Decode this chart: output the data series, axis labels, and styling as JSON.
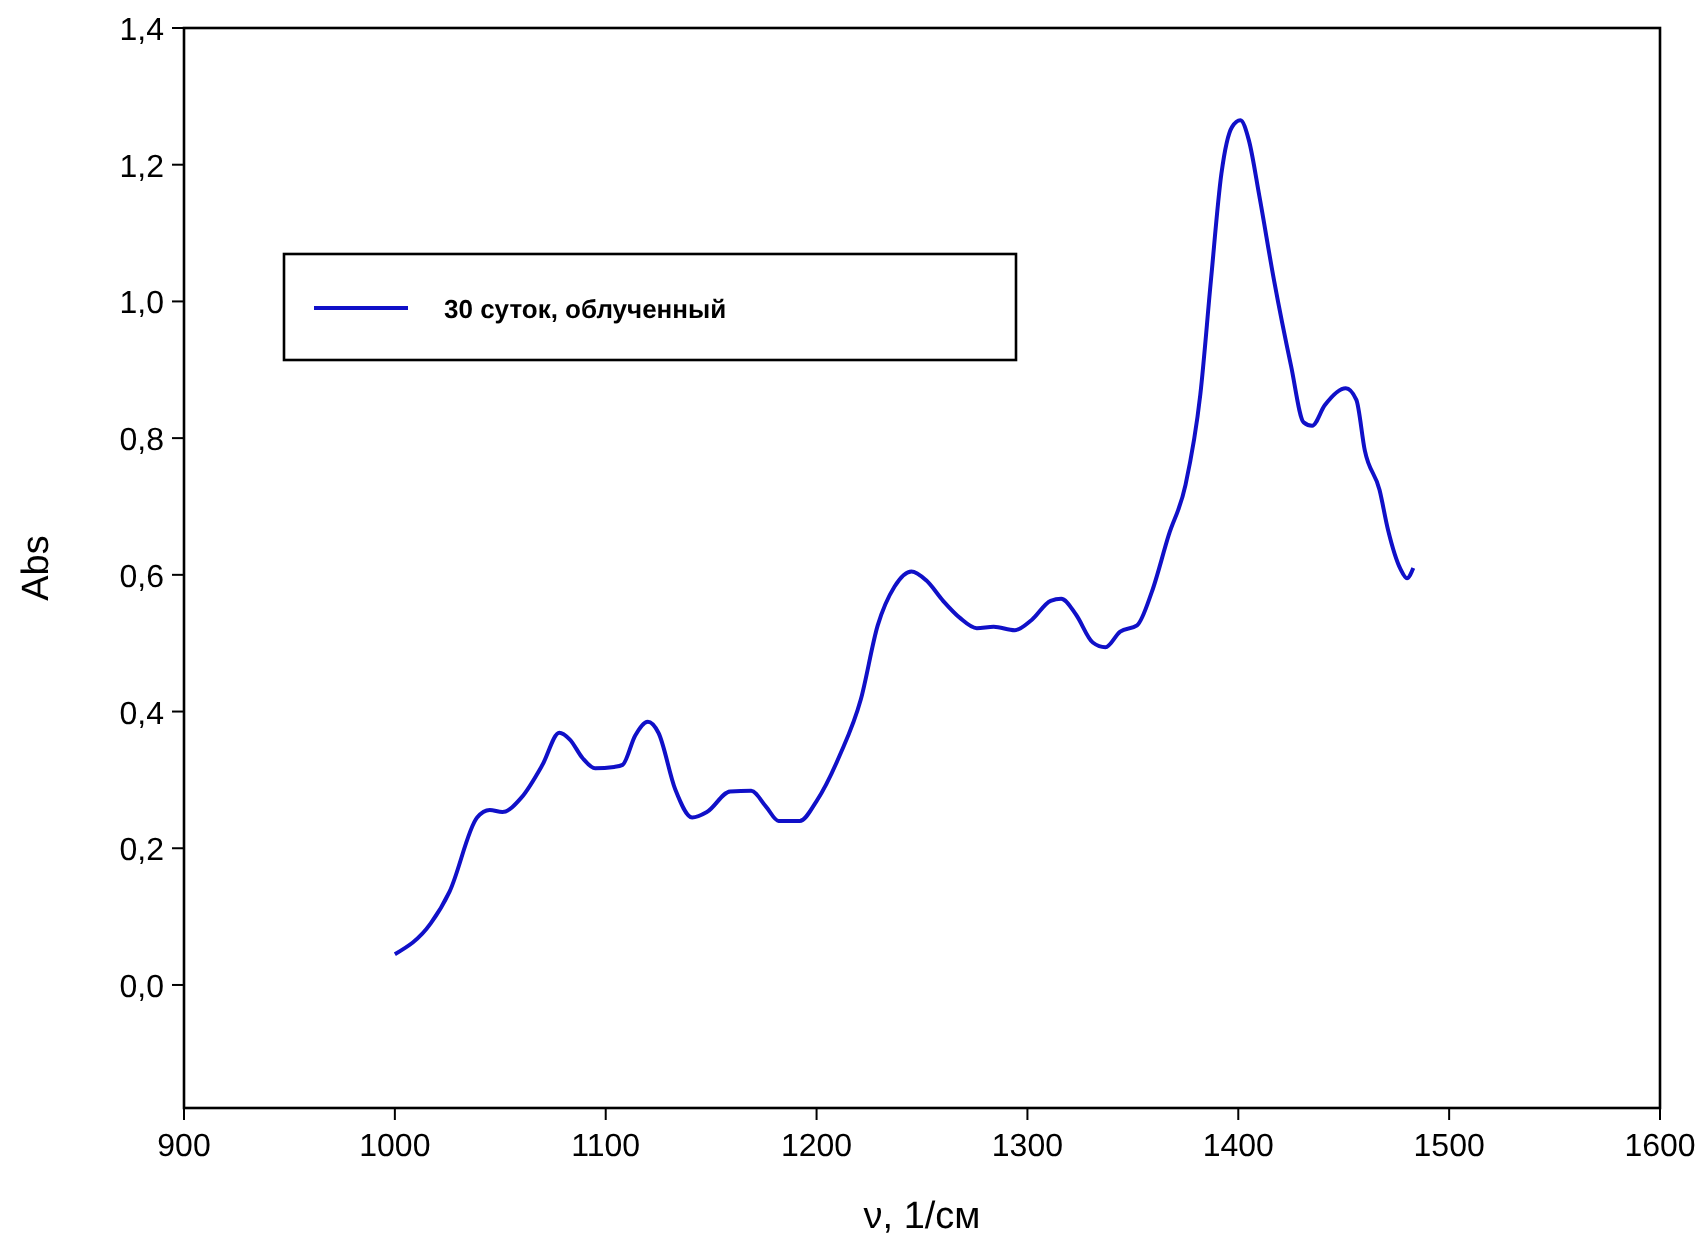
{
  "chart_data": {
    "type": "line",
    "xlabel": "ν, 1/см",
    "ylabel": "Abs",
    "xlim": [
      900,
      1600
    ],
    "xticks": [
      900,
      1000,
      1100,
      1200,
      1300,
      1400,
      1500,
      1600
    ],
    "ylim": [
      -0.18,
      1.4
    ],
    "yticks": [
      {
        "value": 0,
        "label": "0,0"
      },
      {
        "value": 0.2,
        "label": "0,2"
      },
      {
        "value": 0.4,
        "label": "0,4"
      },
      {
        "value": 0.6,
        "label": "0,6"
      },
      {
        "value": 0.8,
        "label": "0,8"
      },
      {
        "value": 1.0,
        "label": "1,0"
      },
      {
        "value": 1.2,
        "label": "1,2"
      },
      {
        "value": 1.4,
        "label": "1,4"
      }
    ],
    "legend": "top left",
    "grid": false,
    "marker": "none",
    "line_style": "solid",
    "series": [
      {
        "name": "30 суток, облученный",
        "color": "#1010c8",
        "x": [
          1000,
          1017,
          1026,
          1039,
          1045,
          1051,
          1060,
          1070,
          1078,
          1083,
          1089,
          1095,
          1104,
          1108,
          1114,
          1120,
          1125,
          1133,
          1141,
          1148,
          1159,
          1169,
          1176,
          1182,
          1192,
          1200,
          1211,
          1221,
          1229,
          1237,
          1245,
          1252,
          1260,
          1268,
          1276,
          1284,
          1294,
          1302,
          1311,
          1316,
          1323,
          1331,
          1337,
          1344,
          1352,
          1359,
          1367,
          1375,
          1382,
          1387,
          1392,
          1397,
          1401,
          1405,
          1410,
          1417,
          1425,
          1431,
          1435,
          1441,
          1451,
          1456,
          1460,
          1467,
          1471,
          1477,
          1480,
          1483
        ],
        "values": [
          0.045,
          0.09,
          0.137,
          0.245,
          0.256,
          0.253,
          0.274,
          0.322,
          0.369,
          0.359,
          0.332,
          0.317,
          0.319,
          0.322,
          0.365,
          0.385,
          0.369,
          0.286,
          0.245,
          0.253,
          0.283,
          0.284,
          0.261,
          0.24,
          0.24,
          0.269,
          0.336,
          0.418,
          0.526,
          0.583,
          0.605,
          0.592,
          0.562,
          0.537,
          0.522,
          0.524,
          0.519,
          0.534,
          0.562,
          0.565,
          0.542,
          0.501,
          0.494,
          0.517,
          0.526,
          0.575,
          0.658,
          0.732,
          0.864,
          1.03,
          1.187,
          1.255,
          1.265,
          1.236,
          1.154,
          1.03,
          0.906,
          0.823,
          0.818,
          0.848,
          0.873,
          0.856,
          0.782,
          0.724,
          0.666,
          0.608,
          0.595,
          0.61
        ]
      }
    ]
  }
}
